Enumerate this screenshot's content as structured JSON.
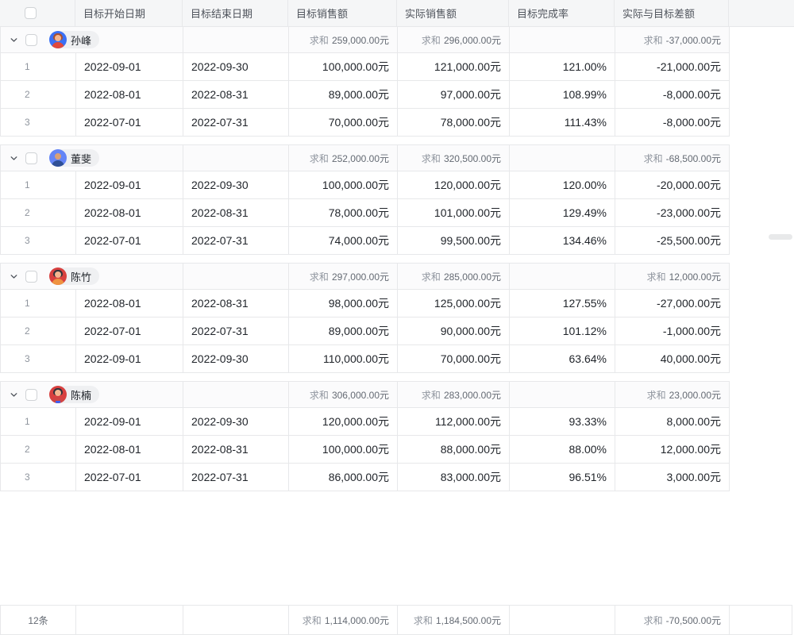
{
  "table": {
    "header": {
      "columns": [
        "目标开始日期",
        "目标结束日期",
        "目标销售额",
        "实际销售额",
        "目标完成率",
        "实际与目标差额"
      ]
    },
    "sum_label": "求和",
    "groups": [
      {
        "name": "孙峰",
        "avatar": {
          "bg": "#3a70f5",
          "skin": "#f5b690",
          "hair": "#a8502f",
          "shirt": "#e0483c"
        },
        "sums": {
          "target": "259,000.00元",
          "actual": "296,000.00元",
          "diff": "-37,000.00元"
        },
        "rows": [
          {
            "index": "1",
            "start": "2022-09-01",
            "end": "2022-09-30",
            "target": "100,000.00元",
            "actual": "121,000.00元",
            "rate": "121.00%",
            "diff": "-21,000.00元"
          },
          {
            "index": "2",
            "start": "2022-08-01",
            "end": "2022-08-31",
            "target": "89,000.00元",
            "actual": "97,000.00元",
            "rate": "108.99%",
            "diff": "-8,000.00元"
          },
          {
            "index": "3",
            "start": "2022-07-01",
            "end": "2022-07-31",
            "target": "70,000.00元",
            "actual": "78,000.00元",
            "rate": "111.43%",
            "diff": "-8,000.00元"
          }
        ]
      },
      {
        "name": "董斐",
        "avatar": {
          "bg": "#6485f7",
          "skin": "#d9a078",
          "hair": "transparent",
          "shirt": "#2f4f96"
        },
        "sums": {
          "target": "252,000.00元",
          "actual": "320,500.00元",
          "diff": "-68,500.00元"
        },
        "rows": [
          {
            "index": "1",
            "start": "2022-09-01",
            "end": "2022-09-30",
            "target": "100,000.00元",
            "actual": "120,000.00元",
            "rate": "120.00%",
            "diff": "-20,000.00元"
          },
          {
            "index": "2",
            "start": "2022-08-01",
            "end": "2022-08-31",
            "target": "78,000.00元",
            "actual": "101,000.00元",
            "rate": "129.49%",
            "diff": "-23,000.00元"
          },
          {
            "index": "3",
            "start": "2022-07-01",
            "end": "2022-07-31",
            "target": "74,000.00元",
            "actual": "99,500.00元",
            "rate": "134.46%",
            "diff": "-25,500.00元"
          }
        ]
      },
      {
        "name": "陈竹",
        "avatar": {
          "bg": "#d8403f",
          "skin": "#f5b690",
          "hair": "#30323c",
          "shirt": "#ef9340"
        },
        "sums": {
          "target": "297,000.00元",
          "actual": "285,000.00元",
          "diff": "12,000.00元"
        },
        "rows": [
          {
            "index": "1",
            "start": "2022-08-01",
            "end": "2022-08-31",
            "target": "98,000.00元",
            "actual": "125,000.00元",
            "rate": "127.55%",
            "diff": "-27,000.00元"
          },
          {
            "index": "2",
            "start": "2022-07-01",
            "end": "2022-07-31",
            "target": "89,000.00元",
            "actual": "90,000.00元",
            "rate": "101.12%",
            "diff": "-1,000.00元"
          },
          {
            "index": "3",
            "start": "2022-09-01",
            "end": "2022-09-30",
            "target": "110,000.00元",
            "actual": "70,000.00元",
            "rate": "63.64%",
            "diff": "40,000.00元"
          }
        ]
      },
      {
        "name": "陈楠",
        "avatar": {
          "bg": "#d8403f",
          "skin": "#f5b690",
          "hair": "#30323c",
          "shirt": "#cf4545",
          "collar": "#3f5ef0"
        },
        "sums": {
          "target": "306,000.00元",
          "actual": "283,000.00元",
          "diff": "23,000.00元"
        },
        "rows": [
          {
            "index": "1",
            "start": "2022-09-01",
            "end": "2022-09-30",
            "target": "120,000.00元",
            "actual": "112,000.00元",
            "rate": "93.33%",
            "diff": "8,000.00元"
          },
          {
            "index": "2",
            "start": "2022-08-01",
            "end": "2022-08-31",
            "target": "100,000.00元",
            "actual": "88,000.00元",
            "rate": "88.00%",
            "diff": "12,000.00元"
          },
          {
            "index": "3",
            "start": "2022-07-01",
            "end": "2022-07-31",
            "target": "86,000.00元",
            "actual": "83,000.00元",
            "rate": "96.51%",
            "diff": "3,000.00元"
          }
        ]
      }
    ],
    "footer": {
      "count": "12条",
      "target_sum": "1,114,000.00元",
      "actual_sum": "1,184,500.00元",
      "diff_sum": "-70,500.00元"
    }
  },
  "colors": {
    "header_bg": "#f5f6f7",
    "grid_line": "#e7e8ea",
    "text_primary": "#1f2329",
    "text_secondary": "#646a73",
    "text_muted": "#8f959e",
    "pill_bg": "#eff0f2"
  }
}
